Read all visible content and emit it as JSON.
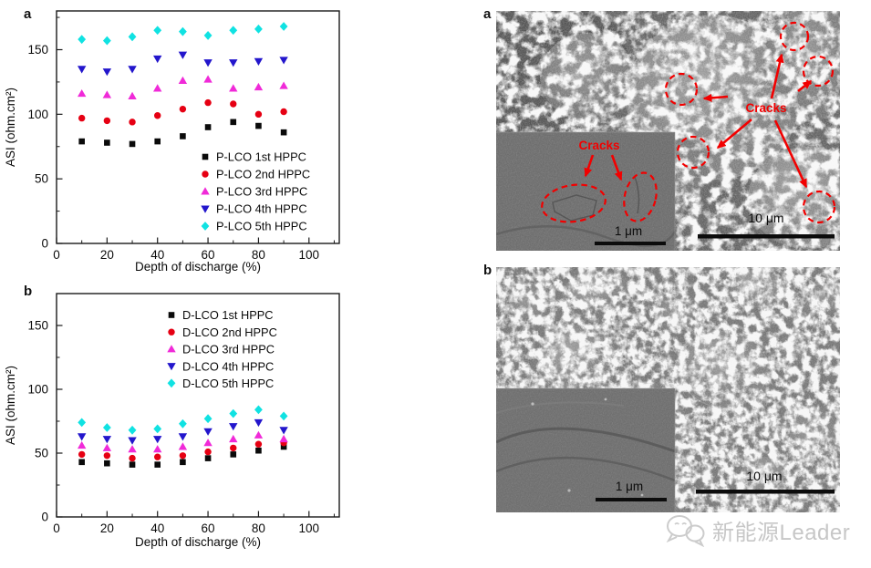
{
  "panel_labels": {
    "chart_a": "a",
    "chart_b": "b",
    "sem_a": "a",
    "sem_b": "b"
  },
  "chart_data": [
    {
      "type": "scatter",
      "panel": "a",
      "xlabel": "Depth of discharge (%)",
      "ylabel": "ASI (ohm.cm²)",
      "xlim": [
        0,
        112
      ],
      "ylim": [
        0,
        180
      ],
      "xticks": [
        0,
        20,
        40,
        60,
        80,
        100
      ],
      "yticks": [
        0,
        50,
        100,
        150
      ],
      "x_minor_step": 10,
      "y_minor_step": 25,
      "grid": false,
      "legend_position": "inside-bottom-right",
      "x": [
        10,
        20,
        30,
        40,
        50,
        60,
        70,
        80,
        90
      ],
      "series": [
        {
          "name": "P-LCO 1st HPPC",
          "marker": "square",
          "color": "#0a0a0a",
          "values": [
            79,
            78,
            77,
            79,
            83,
            90,
            94,
            91,
            86
          ]
        },
        {
          "name": "P-LCO 2nd HPPC",
          "marker": "circle",
          "color": "#e60013",
          "values": [
            97,
            95,
            94,
            99,
            104,
            109,
            108,
            100,
            102
          ]
        },
        {
          "name": "P-LCO 3rd HPPC",
          "marker": "triangle-up",
          "color": "#f02ad8",
          "values": [
            116,
            115,
            114,
            120,
            126,
            127,
            120,
            121,
            122
          ]
        },
        {
          "name": "P-LCO 4th HPPC",
          "marker": "triangle-down",
          "color": "#2316cc",
          "values": [
            135,
            133,
            135,
            143,
            146,
            140,
            140,
            141,
            142
          ]
        },
        {
          "name": "P-LCO 5th HPPC",
          "marker": "diamond",
          "color": "#10e2e2",
          "values": [
            158,
            157,
            160,
            165,
            164,
            161,
            165,
            166,
            168
          ]
        }
      ]
    },
    {
      "type": "scatter",
      "panel": "b",
      "xlabel": "Depth of discharge (%)",
      "ylabel": "ASI (ohm.cm²)",
      "xlim": [
        0,
        112
      ],
      "ylim": [
        0,
        175
      ],
      "xticks": [
        0,
        20,
        40,
        60,
        80,
        100
      ],
      "yticks": [
        0,
        50,
        100,
        150
      ],
      "x_minor_step": 10,
      "y_minor_step": 25,
      "grid": false,
      "legend_position": "inside-top-center",
      "x": [
        10,
        20,
        30,
        40,
        50,
        60,
        70,
        80,
        90
      ],
      "series": [
        {
          "name": "D-LCO 1st HPPC",
          "marker": "square",
          "color": "#0a0a0a",
          "values": [
            43,
            42,
            41,
            41,
            43,
            46,
            49,
            52,
            55
          ]
        },
        {
          "name": "D-LCO 2nd HPPC",
          "marker": "circle",
          "color": "#e60013",
          "values": [
            49,
            48,
            46,
            47,
            48,
            51,
            54,
            57,
            58
          ]
        },
        {
          "name": "D-LCO 3rd HPPC",
          "marker": "triangle-up",
          "color": "#f02ad8",
          "values": [
            56,
            54,
            53,
            53,
            55,
            58,
            61,
            64,
            61
          ]
        },
        {
          "name": "D-LCO 4th HPPC",
          "marker": "triangle-down",
          "color": "#2316cc",
          "values": [
            63,
            61,
            60,
            61,
            63,
            67,
            71,
            74,
            68
          ]
        },
        {
          "name": "D-LCO 5th HPPC",
          "marker": "diamond",
          "color": "#10e2e2",
          "values": [
            74,
            70,
            68,
            69,
            73,
            77,
            81,
            84,
            79
          ]
        }
      ]
    }
  ],
  "sem": {
    "panel_a": {
      "label": "a",
      "cracks_label_main": "Cracks",
      "cracks_label_inset": "Cracks",
      "scale_inset": "1 μm",
      "scale_main": "10 μm",
      "annotation_color": "#f20000"
    },
    "panel_b": {
      "label": "b",
      "scale_inset": "1 μm",
      "scale_main": "10 μm"
    }
  },
  "watermark": {
    "icon": "wechat-chat-bubbles-icon",
    "text": "新能源Leader",
    "color": "#c7c7c7"
  }
}
